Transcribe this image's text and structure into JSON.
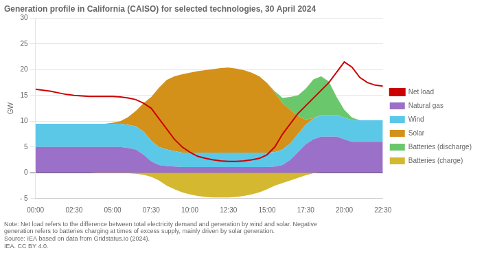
{
  "chart_data": {
    "type": "area",
    "title": "Generation profile in California (CAISO) for selected technologies, 30 April 2024",
    "ylabel": "GW",
    "annotations": [
      "Note: Net load refers to the difference between total electricity demand and generation by wind and solar. Negative\ngeneration refers to batteries charging at times of excess supply, mainly driven by solar generation.",
      "Source: IEA based on data from Gridstatus.io (2024).",
      "IEA. CC BY 4.0."
    ],
    "stacked": true,
    "grid": "y",
    "legend": "right",
    "xlim": [
      0,
      22.5
    ],
    "xticks": [
      {
        "value": 0,
        "label": "00:00"
      },
      {
        "value": 2.5,
        "label": "02:30"
      },
      {
        "value": 5,
        "label": "05:00"
      },
      {
        "value": 7.5,
        "label": "07:30"
      },
      {
        "value": 10,
        "label": "10:00"
      },
      {
        "value": 12.5,
        "label": "12:30"
      },
      {
        "value": 15,
        "label": "15:00"
      },
      {
        "value": 17.5,
        "label": "17:30"
      },
      {
        "value": 20,
        "label": "20:00"
      },
      {
        "value": 22.5,
        "label": "22:30"
      }
    ],
    "ylim": [
      -5,
      30
    ],
    "yticks": [
      {
        "value": -5,
        "label": "- 5"
      },
      0,
      5,
      10,
      15,
      20,
      25,
      30
    ],
    "x": [
      0,
      0.5,
      1,
      1.5,
      2,
      2.5,
      3,
      3.5,
      4,
      4.5,
      5,
      5.5,
      6,
      6.5,
      7,
      7.5,
      8,
      8.5,
      9,
      9.5,
      10,
      10.5,
      11,
      11.5,
      12,
      12.5,
      13,
      13.5,
      14,
      14.5,
      15,
      15.5,
      16,
      16.5,
      17,
      17.5,
      18,
      18.5,
      19,
      19.5,
      20,
      20.5,
      21,
      21.5,
      22,
      22.5
    ],
    "series": [
      {
        "name": "Natural gas",
        "type": "area",
        "color": "#9B70C8",
        "values": [
          5.0,
          5.0,
          5.0,
          5.0,
          5.0,
          5.0,
          5.0,
          5.0,
          5.0,
          5.0,
          5.0,
          5.0,
          4.8,
          4.5,
          3.5,
          2.2,
          1.5,
          1.3,
          1.2,
          1.1,
          1.1,
          1.1,
          1.1,
          1.1,
          1.1,
          1.1,
          1.1,
          1.1,
          1.1,
          1.1,
          1.1,
          1.2,
          1.5,
          2.5,
          4.0,
          5.5,
          6.5,
          7.0,
          7.0,
          7.0,
          6.5,
          6.0,
          6.0,
          6.0,
          6.0,
          6.0
        ]
      },
      {
        "name": "Wind",
        "type": "area",
        "color": "#5BC8E8",
        "values": [
          4.5,
          4.5,
          4.5,
          4.5,
          4.5,
          4.5,
          4.5,
          4.5,
          4.5,
          4.5,
          4.5,
          4.5,
          4.5,
          4.5,
          4.5,
          4.0,
          3.5,
          3.2,
          3.0,
          2.8,
          2.8,
          2.8,
          2.8,
          2.8,
          2.8,
          2.8,
          2.8,
          2.8,
          2.8,
          2.8,
          2.8,
          2.8,
          3.0,
          3.2,
          3.5,
          3.8,
          4.0,
          4.2,
          4.2,
          4.2,
          4.2,
          4.2,
          4.2,
          4.2,
          4.2,
          4.2
        ]
      },
      {
        "name": "Solar",
        "type": "area",
        "color": "#D4911A",
        "values": [
          0,
          0,
          0,
          0,
          0,
          0,
          0,
          0,
          0,
          0,
          0.2,
          0.5,
          1.5,
          3.0,
          5.5,
          8.5,
          11.5,
          13.5,
          14.5,
          15.2,
          15.5,
          15.8,
          16.0,
          16.2,
          16.4,
          16.5,
          16.3,
          16.0,
          15.5,
          14.8,
          13.5,
          11.5,
          9.0,
          6.5,
          3.5,
          1.0,
          0.1,
          0,
          0,
          0,
          0,
          0,
          0,
          0,
          0,
          0
        ]
      },
      {
        "name": "Batteries (discharge)",
        "type": "area",
        "color": "#6BC76B",
        "values": [
          0,
          0,
          0,
          0,
          0,
          0,
          0,
          0,
          0,
          0,
          0,
          0,
          0,
          0,
          0,
          0,
          0,
          0,
          0,
          0,
          0,
          0,
          0,
          0,
          0,
          0,
          0,
          0,
          0,
          0,
          0,
          0.3,
          1.0,
          2.5,
          4.0,
          6.0,
          7.5,
          7.5,
          6.5,
          3.5,
          1.5,
          0.5,
          0,
          0,
          0,
          0
        ]
      },
      {
        "name": "Batteries (charge)",
        "type": "area",
        "color": "#D4B830",
        "values": [
          0,
          0,
          0,
          0,
          0,
          0,
          0,
          0,
          -0.1,
          -0.1,
          -0.1,
          -0.1,
          -0.1,
          -0.2,
          -0.4,
          -0.8,
          -1.5,
          -2.5,
          -3.2,
          -3.8,
          -4.2,
          -4.5,
          -4.7,
          -4.8,
          -4.8,
          -4.8,
          -4.7,
          -4.5,
          -4.2,
          -3.8,
          -3.2,
          -2.5,
          -2.0,
          -1.5,
          -1.0,
          -0.5,
          -0.1,
          0,
          0,
          0,
          0,
          0,
          0,
          0,
          0,
          0
        ]
      },
      {
        "name": "Net load",
        "type": "line",
        "color": "#CC0000",
        "values": [
          16.2,
          16.0,
          15.8,
          15.5,
          15.2,
          15.0,
          14.9,
          14.8,
          14.8,
          14.8,
          14.8,
          14.7,
          14.5,
          14.2,
          13.5,
          12.5,
          10.5,
          8.5,
          6.5,
          5.0,
          4.0,
          3.2,
          2.8,
          2.5,
          2.3,
          2.2,
          2.2,
          2.3,
          2.5,
          2.8,
          3.5,
          5.0,
          7.5,
          9.5,
          11.5,
          13.0,
          14.5,
          16.0,
          17.5,
          19.5,
          21.5,
          20.5,
          18.5,
          17.5,
          17.0,
          16.8
        ]
      }
    ]
  }
}
